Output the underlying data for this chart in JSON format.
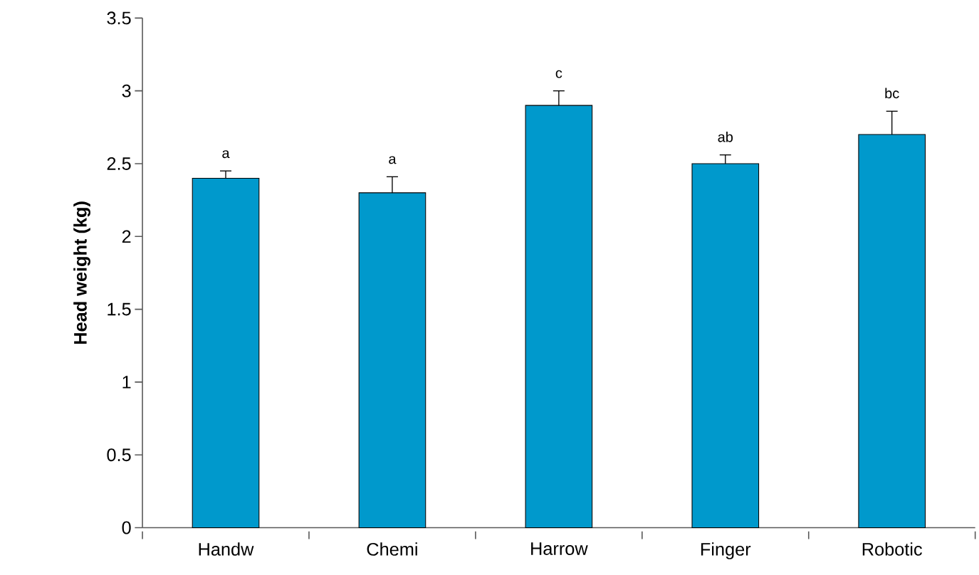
{
  "chart_data": {
    "type": "bar",
    "ylabel": "Head weight  (kg)",
    "categories": [
      "Handw",
      "Chemi",
      "Harrow",
      "Finger",
      "Robotic"
    ],
    "values": [
      2.4,
      2.3,
      2.9,
      2.5,
      2.7
    ],
    "errors": [
      [
        2.4,
        2.45
      ],
      [
        2.3,
        2.41
      ],
      [
        2.9,
        3.0
      ],
      [
        2.5,
        2.56
      ],
      [
        2.7,
        2.86
      ]
    ],
    "color": "#0099cc",
    "ylim": [
      0,
      3.5
    ],
    "yticks": [
      0,
      0.5,
      1,
      1.5,
      2,
      2.5,
      3,
      3.5
    ],
    "annotations": [
      {
        "text": "a",
        "x": "Handw",
        "y": 2.45
      },
      {
        "text": "a",
        "x": "Chemi",
        "y": 2.41
      },
      {
        "text": "c",
        "x": "Harrow",
        "y": 3.0
      },
      {
        "text": "ab",
        "x": "Finger",
        "y": 2.56
      },
      {
        "text": "bc",
        "x": "Robotic",
        "y": 2.86
      }
    ]
  }
}
